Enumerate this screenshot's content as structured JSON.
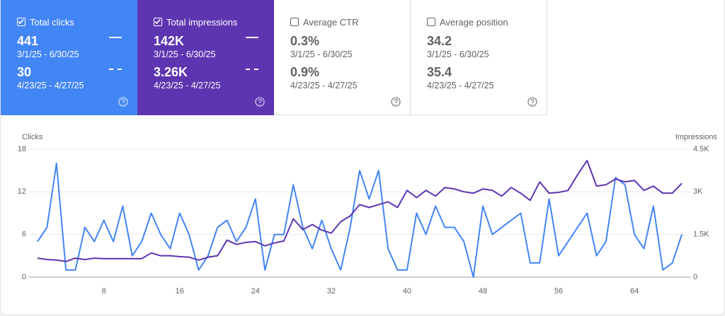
{
  "cards": [
    {
      "label": "Total clicks",
      "selected": true,
      "color": "#4285f4",
      "value": "441",
      "range": "3/1/25 - 6/30/25",
      "compare_value": "30",
      "compare_range": "4/23/25 - 4/27/25"
    },
    {
      "label": "Total impressions",
      "selected": true,
      "color": "#5e35b1",
      "value": "142K",
      "range": "3/1/25 - 6/30/25",
      "compare_value": "3.26K",
      "compare_range": "4/23/25 - 4/27/25"
    },
    {
      "label": "Average CTR",
      "selected": false,
      "value": "0.3%",
      "range": "3/1/25 - 6/30/25",
      "compare_value": "0.9%",
      "compare_range": "4/23/25 - 4/27/25"
    },
    {
      "label": "Average position",
      "selected": false,
      "value": "34.2",
      "range": "3/1/25 - 6/30/25",
      "compare_value": "35.4",
      "compare_range": "4/23/25 - 4/27/25"
    }
  ],
  "chart_data": {
    "type": "line",
    "y_label": "Clicks",
    "y2_label": "Impressions",
    "x": [
      1,
      2,
      3,
      4,
      5,
      6,
      7,
      8,
      9,
      10,
      11,
      12,
      13,
      14,
      15,
      16,
      17,
      18,
      19,
      20,
      21,
      22,
      23,
      24,
      25,
      26,
      27,
      28,
      29,
      30,
      31,
      32,
      33,
      34,
      35,
      36,
      37,
      38,
      39,
      40,
      41,
      42,
      43,
      44,
      45,
      46,
      47,
      48,
      49,
      50,
      51,
      52,
      53,
      54,
      55,
      56,
      57,
      58,
      59,
      60,
      61,
      62,
      63,
      64,
      65,
      66,
      67,
      68,
      69
    ],
    "series": [
      {
        "name": "Clicks",
        "color": "#4285f4",
        "values": [
          5,
          7,
          16,
          1,
          1,
          7,
          5,
          8,
          5,
          10,
          3,
          5,
          9,
          6,
          4,
          9,
          6,
          1,
          3,
          7,
          8,
          5,
          7,
          11,
          1,
          6,
          6,
          13,
          7,
          4,
          8,
          4,
          1,
          7,
          15,
          11,
          15,
          4,
          1,
          1,
          9,
          6,
          10,
          7,
          7,
          5,
          0,
          10,
          6,
          7,
          8,
          9,
          2,
          2,
          11,
          3,
          5,
          7,
          9,
          3,
          5,
          14,
          13,
          6,
          4,
          10,
          1,
          2,
          6
        ]
      },
      {
        "name": "Impressions",
        "color": "#5e35b1",
        "axis": "y2",
        "values": [
          670,
          620,
          600,
          550,
          670,
          620,
          670,
          650,
          650,
          650,
          650,
          650,
          850,
          750,
          750,
          720,
          700,
          600,
          700,
          750,
          1300,
          1150,
          1220,
          1250,
          1100,
          1200,
          1270,
          2050,
          1670,
          1850,
          1650,
          1550,
          1950,
          2150,
          2550,
          2450,
          2550,
          2650,
          2450,
          3050,
          2800,
          3050,
          2850,
          3150,
          3100,
          3000,
          2950,
          3100,
          3050,
          2850,
          3150,
          2950,
          2700,
          3350,
          2950,
          2980,
          3050,
          3600,
          4100,
          3200,
          3250,
          3450,
          3350,
          3400,
          3050,
          3200,
          2950,
          2950,
          3300
        ]
      }
    ],
    "xlim": [
      1,
      69
    ],
    "xticks": [
      8,
      16,
      24,
      32,
      40,
      48,
      56,
      64
    ],
    "ylim": [
      0,
      18
    ],
    "yticks": [
      0,
      6,
      12,
      18
    ],
    "y2lim": [
      0,
      4500
    ],
    "y2ticks": [
      0,
      {
        "value": 1500,
        "label": "1.5K"
      },
      {
        "value": 3000,
        "label": "3K"
      },
      {
        "value": 4500,
        "label": "4.5K"
      }
    ],
    "grid": true
  }
}
